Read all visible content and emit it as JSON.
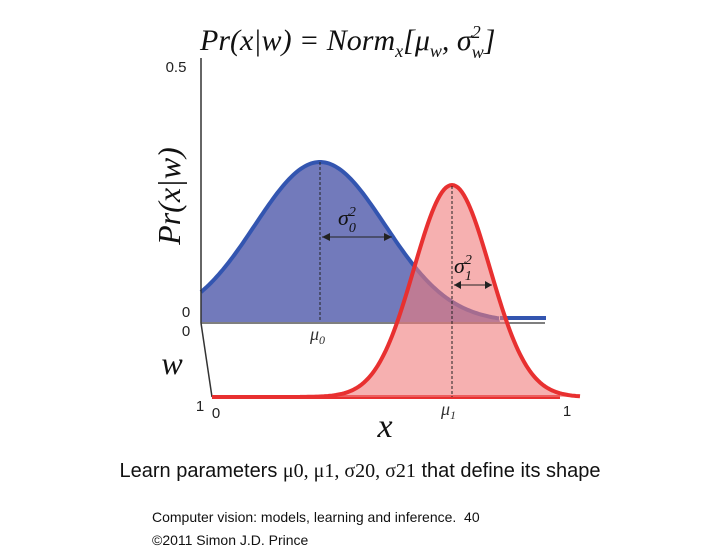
{
  "figure": {
    "equation_parts": [
      "Pr(x|w) = Norm",
      "x",
      "[μ",
      "w",
      ", σ",
      "2",
      "w",
      "]"
    ],
    "y_axis_label": "Pr(x|w)",
    "w_label": "w",
    "x_label": "x",
    "ticks": {
      "y_top": "0.5",
      "y_zero": "0",
      "w_zero": "0",
      "w_one": "1",
      "x_zero": "0",
      "x_one": "1"
    },
    "annotations": {
      "sigma0": [
        "σ",
        "2",
        "0"
      ],
      "sigma1": [
        "σ",
        "2",
        "1"
      ],
      "mu0": [
        "μ",
        "0"
      ],
      "mu1": [
        "μ",
        "1"
      ]
    }
  },
  "caption": {
    "before": "Learn parameters ",
    "params": "μ0, μ1, σ20, σ21",
    "after": " that define its shape"
  },
  "footer": {
    "line1": "Computer vision: models, learning and inference.  40",
    "line2": "©2011 Simon J.D. Prince"
  }
}
